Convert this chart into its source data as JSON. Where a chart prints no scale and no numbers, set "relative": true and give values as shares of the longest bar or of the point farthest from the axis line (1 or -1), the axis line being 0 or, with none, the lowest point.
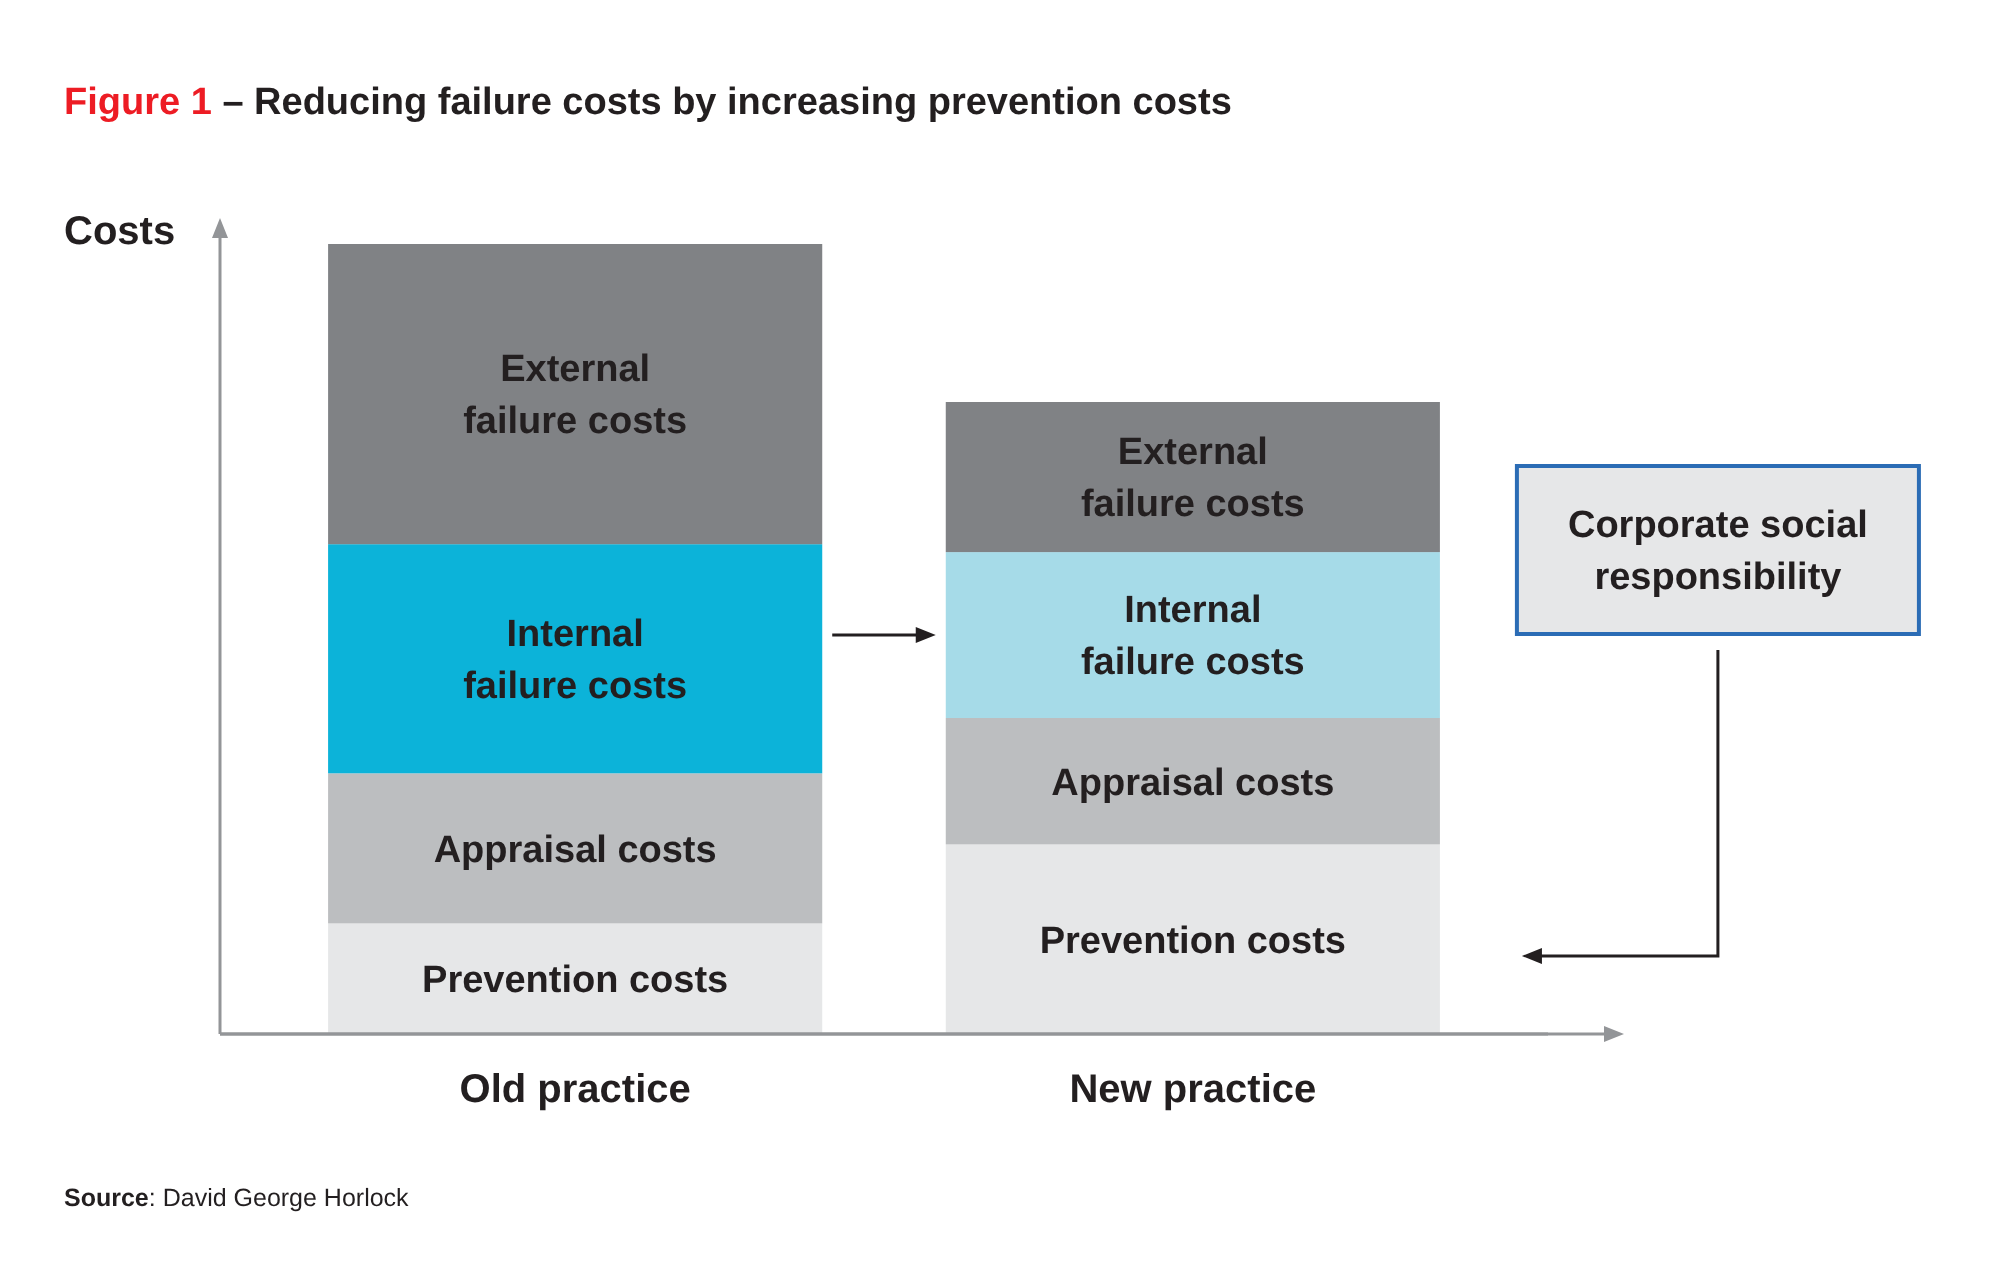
{
  "chart_data": {
    "type": "bar",
    "title": "Figure 1 – Reducing failure costs by increasing prevention costs",
    "ylabel": "Costs",
    "categories": [
      "Old practice",
      "New practice"
    ],
    "stacked": true,
    "relative": true,
    "series": [
      {
        "name": "Prevention costs",
        "color": "#e6e7e8",
        "values": [
          0.14,
          0.24
        ]
      },
      {
        "name": "Appraisal costs",
        "color": "#bcbec0",
        "values": [
          0.19,
          0.16
        ]
      },
      {
        "name": "Internal failure costs",
        "colors": [
          "#0cb3d9",
          "#a6dbe8"
        ],
        "values": [
          0.29,
          0.21
        ]
      },
      {
        "name": "External failure costs",
        "color": "#808285",
        "values": [
          0.38,
          0.19
        ]
      }
    ],
    "annotations": [
      "Corporate social responsibility",
      "Source: David George Horlock"
    ]
  }
}
